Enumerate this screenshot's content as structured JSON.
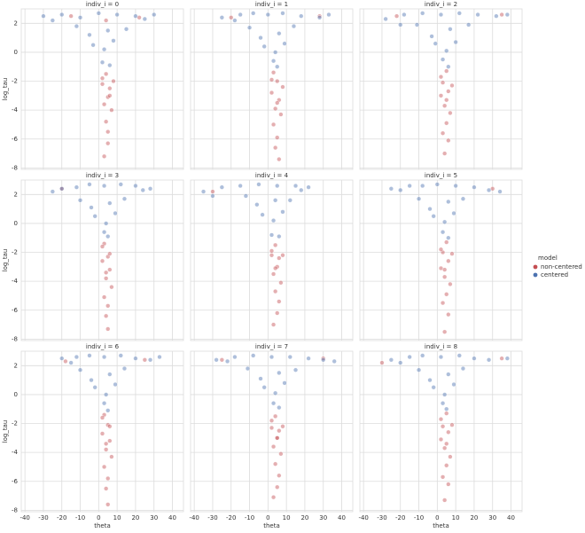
{
  "chart_data": [
    {
      "type": "scatter",
      "title": "indiv_i = 0",
      "ylabel": "log_tau",
      "legend_title": "model",
      "xlim": [
        -42,
        46
      ],
      "xticks": [
        -40,
        -30,
        -20,
        -10,
        0,
        10,
        20,
        30,
        40
      ],
      "ylim": [
        -8.1,
        3.0
      ],
      "yticks": [
        -8,
        -6,
        -4,
        -2,
        0,
        2
      ],
      "series": [
        {
          "name": "non-centered",
          "color": "#c44e52",
          "x": [
            4,
            2,
            6,
            5,
            3,
            7,
            4,
            5,
            2,
            8,
            5,
            3,
            6,
            4,
            -15,
            22
          ],
          "values": [
            -1.5,
            -2.2,
            -2.5,
            -3.1,
            -3.6,
            -4.0,
            -4.8,
            -5.5,
            -1.8,
            -2.0,
            -6.3,
            -7.2,
            -3.0,
            2.2,
            2.5,
            2.4
          ]
        },
        {
          "name": "centered",
          "color": "#4c72b0",
          "x": [
            -30,
            -20,
            -10,
            0,
            10,
            20,
            25,
            -12,
            -5,
            5,
            15,
            -3,
            3,
            8,
            2,
            6,
            -25,
            30
          ],
          "values": [
            2.5,
            2.6,
            2.4,
            2.7,
            2.6,
            2.5,
            2.3,
            1.8,
            1.2,
            1.5,
            1.6,
            0.5,
            0.2,
            0.8,
            -0.7,
            -0.9,
            2.2,
            2.6
          ]
        }
      ]
    },
    {
      "type": "scatter",
      "title": "indiv_i = 1",
      "xlim": [
        -42,
        46
      ],
      "xticks": [
        -40,
        -30,
        -20,
        -10,
        0,
        10,
        20,
        30,
        40
      ],
      "ylim": [
        -8.1,
        3.0
      ],
      "yticks": [
        -8,
        -6,
        -4,
        -2,
        0,
        2
      ],
      "series": [
        {
          "color": "#c44e52",
          "x": [
            3,
            5,
            2,
            6,
            4,
            7,
            3,
            5,
            4,
            8,
            2,
            6,
            5,
            -20,
            28
          ],
          "values": [
            -1.4,
            -2.0,
            -2.8,
            -3.3,
            -3.9,
            -4.3,
            -5.0,
            -5.9,
            -6.6,
            -2.4,
            -1.9,
            -7.4,
            -3.5,
            2.4,
            2.5
          ]
        },
        {
          "color": "#4c72b0",
          "x": [
            -25,
            -15,
            -8,
            0,
            8,
            18,
            28,
            -10,
            -4,
            6,
            14,
            -2,
            4,
            9,
            3,
            5,
            33,
            -18
          ],
          "values": [
            2.4,
            2.6,
            2.7,
            2.6,
            2.7,
            2.5,
            2.4,
            1.7,
            1.0,
            1.3,
            1.8,
            0.4,
            0.0,
            0.6,
            -0.6,
            -1.0,
            2.6,
            2.2
          ]
        }
      ]
    },
    {
      "type": "scatter",
      "title": "indiv_i = 2",
      "xlim": [
        -42,
        46
      ],
      "xticks": [
        -40,
        -30,
        -20,
        -10,
        0,
        10,
        20,
        30,
        40
      ],
      "ylim": [
        -8.1,
        3.0
      ],
      "yticks": [
        -8,
        -6,
        -4,
        -2,
        0,
        2
      ],
      "series": [
        {
          "color": "#c44e52",
          "x": [
            5,
            3,
            6,
            2,
            4,
            7,
            5,
            3,
            6,
            4,
            8,
            2,
            5,
            -22,
            35
          ],
          "values": [
            -1.3,
            -2.1,
            -2.7,
            -3.0,
            -3.7,
            -4.2,
            -4.9,
            -5.6,
            -6.1,
            -7.0,
            -2.3,
            -1.7,
            -3.3,
            2.5,
            2.6
          ]
        },
        {
          "color": "#4c72b0",
          "x": [
            -28,
            -18,
            -8,
            2,
            12,
            22,
            32,
            -11,
            -3,
            7,
            17,
            -1,
            5,
            10,
            3,
            6,
            38,
            -20
          ],
          "values": [
            2.3,
            2.6,
            2.7,
            2.6,
            2.7,
            2.6,
            2.5,
            1.9,
            1.1,
            1.6,
            1.9,
            0.6,
            0.1,
            0.7,
            -0.5,
            -1.0,
            2.6,
            1.9
          ]
        }
      ]
    },
    {
      "type": "scatter",
      "title": "indiv_i = 3",
      "ylabel": "log_tau",
      "xlim": [
        -42,
        46
      ],
      "xticks": [
        -40,
        -30,
        -20,
        -10,
        0,
        10,
        20,
        30,
        40
      ],
      "ylim": [
        -8.1,
        3.0
      ],
      "yticks": [
        -8,
        -6,
        -4,
        -2,
        0,
        2
      ],
      "series": [
        {
          "color": "#c44e52",
          "x": [
            3,
            5,
            2,
            6,
            4,
            7,
            3,
            5,
            4,
            6,
            2,
            5,
            4,
            -20
          ],
          "values": [
            -1.4,
            -2.3,
            -2.6,
            -3.2,
            -3.8,
            -4.4,
            -5.1,
            -5.7,
            -6.4,
            -2.1,
            -1.6,
            -7.3,
            -3.4,
            2.4
          ]
        },
        {
          "color": "#4c72b0",
          "x": [
            -20,
            -12,
            -5,
            3,
            12,
            20,
            28,
            -10,
            -4,
            6,
            14,
            -2,
            4,
            9,
            3,
            5,
            -25,
            24
          ],
          "values": [
            2.4,
            2.5,
            2.7,
            2.6,
            2.7,
            2.6,
            2.4,
            1.6,
            1.1,
            1.4,
            1.7,
            0.5,
            0.0,
            0.7,
            -0.6,
            -0.9,
            2.2,
            2.3
          ]
        }
      ]
    },
    {
      "type": "scatter",
      "title": "indiv_i = 4",
      "xlim": [
        -42,
        46
      ],
      "xticks": [
        -40,
        -30,
        -20,
        -10,
        0,
        10,
        20,
        30,
        40
      ],
      "ylim": [
        -8.1,
        3.0
      ],
      "yticks": [
        -8,
        -6,
        -4,
        -2,
        0,
        2
      ],
      "series": [
        {
          "color": "#c44e52",
          "x": [
            4,
            2,
            6,
            5,
            3,
            7,
            4,
            6,
            2,
            8,
            5,
            3,
            4,
            -30
          ],
          "values": [
            -1.5,
            -2.2,
            -2.4,
            -3.0,
            -3.5,
            -4.1,
            -4.7,
            -5.4,
            -1.9,
            -2.2,
            -6.2,
            -7.0,
            -3.1,
            2.2
          ]
        },
        {
          "color": "#4c72b0",
          "x": [
            -35,
            -25,
            -15,
            -5,
            5,
            15,
            22,
            -12,
            -6,
            4,
            12,
            -3,
            3,
            8,
            2,
            6,
            -30,
            18
          ],
          "values": [
            2.2,
            2.5,
            2.6,
            2.7,
            2.6,
            2.6,
            2.5,
            1.9,
            1.3,
            1.6,
            1.6,
            0.6,
            0.2,
            0.8,
            -0.8,
            -0.9,
            1.9,
            2.3
          ]
        }
      ]
    },
    {
      "type": "scatter",
      "title": "indiv_i = 5",
      "xlim": [
        -42,
        46
      ],
      "xticks": [
        -40,
        -30,
        -20,
        -10,
        0,
        10,
        20,
        30,
        40
      ],
      "ylim": [
        -8.1,
        3.0
      ],
      "yticks": [
        -8,
        -6,
        -4,
        -2,
        0,
        2
      ],
      "series": [
        {
          "color": "#c44e52",
          "x": [
            5,
            3,
            6,
            2,
            4,
            7,
            5,
            3,
            6,
            4,
            8,
            2,
            4,
            30
          ],
          "values": [
            -1.3,
            -2.0,
            -2.6,
            -3.1,
            -3.7,
            -4.2,
            -4.9,
            -5.5,
            -6.3,
            -7.5,
            -2.1,
            -1.8,
            -3.2,
            2.4
          ]
        },
        {
          "color": "#4c72b0",
          "x": [
            -25,
            -15,
            -8,
            0,
            10,
            20,
            28,
            -10,
            -4,
            6,
            14,
            -2,
            4,
            9,
            3,
            6,
            34,
            -20
          ],
          "values": [
            2.4,
            2.6,
            2.6,
            2.7,
            2.6,
            2.5,
            2.3,
            1.7,
            1.0,
            1.5,
            1.7,
            0.5,
            0.1,
            0.7,
            -0.6,
            -1.0,
            2.2,
            2.3
          ]
        }
      ]
    },
    {
      "type": "scatter",
      "title": "indiv_i = 6",
      "ylabel": "log_tau",
      "xlabel": "theta",
      "xlim": [
        -42,
        46
      ],
      "xticks": [
        -40,
        -30,
        -20,
        -10,
        0,
        10,
        20,
        30,
        40
      ],
      "ylim": [
        -8.1,
        3.0
      ],
      "yticks": [
        -8,
        -6,
        -4,
        -2,
        0,
        2
      ],
      "series": [
        {
          "color": "#c44e52",
          "x": [
            3,
            5,
            2,
            6,
            4,
            7,
            3,
            5,
            4,
            6,
            2,
            5,
            4,
            -18,
            25
          ],
          "values": [
            -1.4,
            -2.1,
            -2.7,
            -3.2,
            -3.8,
            -4.3,
            -5.0,
            -5.8,
            -6.5,
            -2.2,
            -1.6,
            -7.6,
            -3.4,
            2.3,
            2.4
          ]
        },
        {
          "color": "#4c72b0",
          "x": [
            -20,
            -12,
            -5,
            3,
            12,
            20,
            28,
            -10,
            -4,
            6,
            14,
            -2,
            4,
            9,
            3,
            5,
            33,
            -15
          ],
          "values": [
            2.5,
            2.6,
            2.7,
            2.6,
            2.7,
            2.5,
            2.4,
            1.7,
            1.0,
            1.4,
            1.8,
            0.5,
            0.0,
            0.7,
            -0.6,
            -1.1,
            2.6,
            2.2
          ]
        }
      ]
    },
    {
      "type": "scatter",
      "title": "indiv_i = 7",
      "xlabel": "theta",
      "xlim": [
        -42,
        46
      ],
      "xticks": [
        -40,
        -30,
        -20,
        -10,
        0,
        10,
        20,
        30,
        40
      ],
      "ylim": [
        -8.1,
        3.0
      ],
      "yticks": [
        -8,
        -6,
        -4,
        -2,
        0,
        2
      ],
      "series": [
        {
          "color": "#c44e52",
          "x": [
            4,
            2,
            6,
            5,
            3,
            7,
            4,
            6,
            2,
            8,
            5,
            3,
            5,
            -25,
            30
          ],
          "values": [
            -1.5,
            -2.3,
            -2.5,
            -3.0,
            -3.6,
            -4.1,
            -4.8,
            -5.6,
            -1.8,
            -2.2,
            -6.4,
            -7.1,
            -3.0,
            2.4,
            2.5
          ]
        },
        {
          "color": "#4c72b0",
          "x": [
            -28,
            -18,
            -8,
            2,
            12,
            22,
            30,
            -11,
            -4,
            6,
            15,
            -2,
            4,
            9,
            3,
            6,
            36,
            -22
          ],
          "values": [
            2.4,
            2.6,
            2.7,
            2.6,
            2.6,
            2.5,
            2.4,
            1.8,
            1.1,
            1.5,
            1.7,
            0.5,
            0.1,
            0.8,
            -0.6,
            -0.9,
            2.3,
            2.3
          ]
        }
      ]
    },
    {
      "type": "scatter",
      "title": "indiv_i = 8",
      "xlabel": "theta",
      "xlim": [
        -42,
        46
      ],
      "xticks": [
        -40,
        -30,
        -20,
        -10,
        0,
        10,
        20,
        30,
        40
      ],
      "ylim": [
        -8.1,
        3.0
      ],
      "yticks": [
        -8,
        -6,
        -4,
        -2,
        0,
        2
      ],
      "series": [
        {
          "color": "#c44e52",
          "x": [
            5,
            3,
            6,
            2,
            4,
            7,
            5,
            3,
            6,
            4,
            8,
            2,
            5,
            -30,
            35
          ],
          "values": [
            -1.3,
            -2.2,
            -2.6,
            -3.1,
            -3.7,
            -4.3,
            -4.9,
            -5.7,
            -6.2,
            -7.3,
            -2.1,
            -1.7,
            -3.4,
            2.2,
            2.5
          ]
        },
        {
          "color": "#4c72b0",
          "x": [
            -25,
            -15,
            -8,
            2,
            12,
            20,
            28,
            -10,
            -4,
            6,
            14,
            -2,
            4,
            9,
            3,
            5,
            38,
            -20
          ],
          "values": [
            2.4,
            2.6,
            2.7,
            2.6,
            2.7,
            2.5,
            2.4,
            1.7,
            1.0,
            1.4,
            1.8,
            0.5,
            0.0,
            0.7,
            -0.6,
            -1.0,
            2.5,
            2.2
          ]
        }
      ]
    }
  ]
}
